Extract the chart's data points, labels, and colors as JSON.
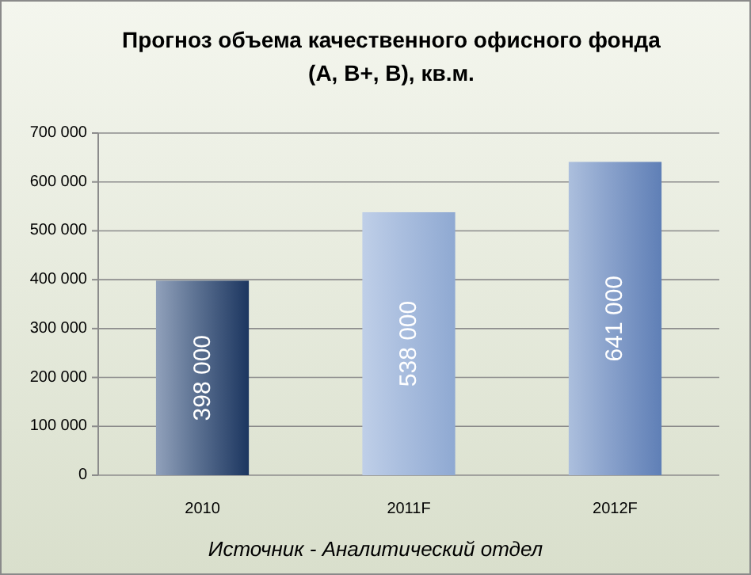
{
  "chart_data": {
    "type": "bar",
    "title": "Прогноз объема качественного офисного фонда (A, B+, B), кв.м.",
    "categories": [
      "2010",
      "2011F",
      "2012F"
    ],
    "values": [
      398000,
      538000,
      641000
    ],
    "colors": [
      "#1c3660",
      "#8fa9d2",
      "#5f7fb6"
    ],
    "value_labels": [
      "398 000",
      "538 000",
      "641 000"
    ],
    "ylim": [
      0,
      700000
    ],
    "yticks": [
      0,
      {
        "value": 100000,
        "label": "100 000"
      },
      {
        "value": 200000,
        "label": "200 000"
      },
      {
        "value": 300000,
        "label": "300 000"
      },
      {
        "value": 400000,
        "label": "400 000"
      },
      {
        "value": 500000,
        "label": "500 000"
      },
      {
        "value": 600000,
        "label": "600 000"
      },
      {
        "value": 700000,
        "label": "700 000"
      }
    ],
    "grid": true,
    "annotations": [
      "Источник - Аналитический отдел"
    ]
  }
}
